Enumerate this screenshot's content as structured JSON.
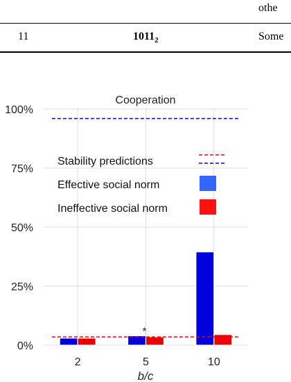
{
  "table_fragment": {
    "partial_top_text": "othe",
    "row": {
      "index": "11",
      "code": "1011",
      "code_base": "2",
      "description": "Some"
    }
  },
  "chart_data": {
    "type": "bar",
    "title": "Cooperation",
    "xlabel": "b/c",
    "ylabel": "",
    "categories": [
      "2",
      "5",
      "10"
    ],
    "ylim": [
      0,
      100
    ],
    "yticks": [
      "0%",
      "25%",
      "50%",
      "75%",
      "100%"
    ],
    "grid": true,
    "legend_position": "center-left",
    "series": [
      {
        "name": "Effective social norm",
        "color": "#0000dd",
        "legend_color": "#3366ff",
        "values": [
          3,
          4,
          39.5
        ]
      },
      {
        "name": "Ineffective social norm",
        "color": "#ee0000",
        "legend_color": "#ff1111",
        "values": [
          3,
          3.5,
          4.5
        ]
      }
    ],
    "stability_predictions": {
      "label": "Stability predictions",
      "lines": [
        {
          "color": "#ee0000",
          "value": 3.5
        },
        {
          "color": "#0000dd",
          "value": 96
        }
      ]
    },
    "annotations": [
      {
        "text": "*",
        "category": "5"
      }
    ]
  }
}
